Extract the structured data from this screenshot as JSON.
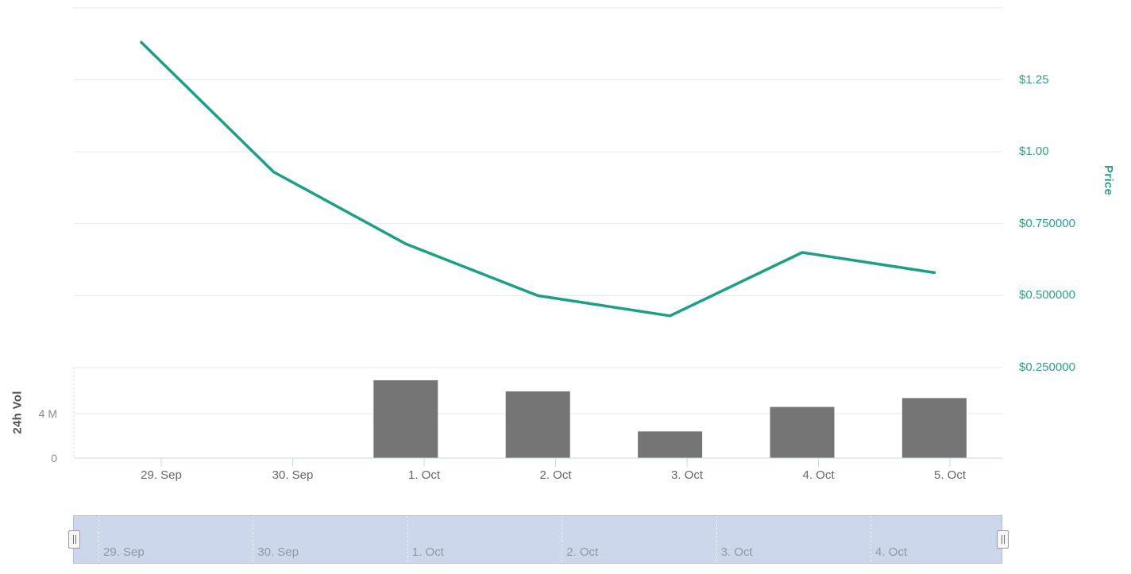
{
  "chart_data": {
    "type": "line",
    "subtype": "stock-chart-with-volume-pane-and-navigator",
    "title": "",
    "legend": false,
    "grid": true,
    "x_categories": [
      "29. Sep",
      "30. Sep",
      "1. Oct",
      "2. Oct",
      "3. Oct",
      "4. Oct",
      "5. Oct"
    ],
    "series": [
      {
        "name": "Price",
        "type": "line",
        "unit": "USD",
        "color": "#17a286",
        "values": [
          1.38,
          0.93,
          0.68,
          0.5,
          0.43,
          0.65,
          0.58
        ]
      },
      {
        "name": "24h Vol",
        "type": "bar",
        "unit": "millions",
        "color": "#757575",
        "values": [
          0,
          0,
          7.0,
          6.0,
          2.4,
          4.6,
          5.4
        ]
      }
    ],
    "price_axis": {
      "title": "Price",
      "position": "right",
      "range": [
        0.25,
        1.5
      ],
      "gridlines": [
        1.5,
        1.25,
        1.0,
        0.75,
        0.5,
        0.25
      ],
      "ticks": [
        {
          "label": "$1.25",
          "value": 1.25
        },
        {
          "label": "$1.00",
          "value": 1.0
        },
        {
          "label": "$0.750000",
          "value": 0.75
        },
        {
          "label": "$0.500000",
          "value": 0.5
        },
        {
          "label": "$0.250000",
          "value": 0.25
        }
      ]
    },
    "volume_axis": {
      "title": "24h Vol",
      "position": "left",
      "range": [
        0,
        8.1
      ],
      "ticks": [
        {
          "label": "4 M",
          "value": 4
        },
        {
          "label": "0",
          "value": 0
        }
      ]
    },
    "navigator": {
      "labels": [
        "29. Sep",
        "30. Sep",
        "1. Oct",
        "2. Oct",
        "3. Oct",
        "4. Oct"
      ]
    },
    "colors": {
      "line": "#17a286",
      "price_label": "#2aa189",
      "bar": "#757575",
      "gridline": "#e8e8e8",
      "axis_line": "#ccd6eb",
      "date_label": "#666666",
      "vol_label": "#8a8a8a",
      "vol_title": "#555555",
      "nav_fill": "#cdd7ec",
      "nav_outline": "#b3bdd4",
      "nav_label": "#8b9aa7"
    }
  }
}
